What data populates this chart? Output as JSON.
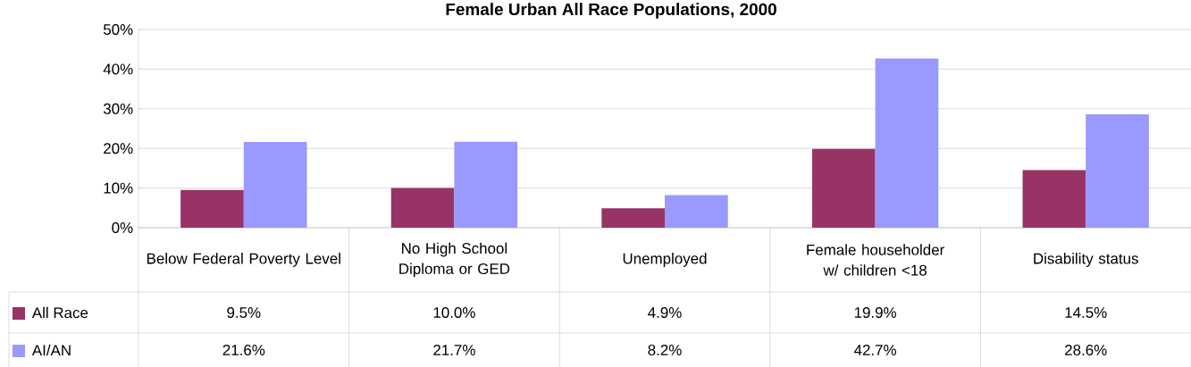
{
  "chart_data": {
    "type": "bar",
    "title": "Female Urban All Race Populations, 2000",
    "categories": [
      "Below Federal Poverty Level",
      "No High School Diploma or GED",
      "Unemployed",
      "Female householder w/ children <18",
      "Disability status"
    ],
    "series": [
      {
        "name": "All Race",
        "color": "#993366",
        "values": [
          9.5,
          10.0,
          4.9,
          19.9,
          14.5
        ],
        "value_labels": [
          "9.5%",
          "10.0%",
          "4.9%",
          "19.9%",
          "14.5%"
        ]
      },
      {
        "name": "AI/AN",
        "color": "#9999ff",
        "values": [
          21.6,
          21.7,
          8.2,
          42.7,
          28.6
        ],
        "value_labels": [
          "21.6%",
          "21.7%",
          "8.2%",
          "42.7%",
          "28.6%"
        ]
      }
    ],
    "ylim": [
      0,
      50
    ],
    "yticks": [
      {
        "value": 0,
        "label": "0%"
      },
      {
        "value": 10,
        "label": "10%"
      },
      {
        "value": 20,
        "label": "20%"
      },
      {
        "value": 30,
        "label": "30%"
      },
      {
        "value": 40,
        "label": "40%"
      },
      {
        "value": 50,
        "label": "50%"
      }
    ],
    "grid": "y",
    "legend": "bottom left"
  }
}
